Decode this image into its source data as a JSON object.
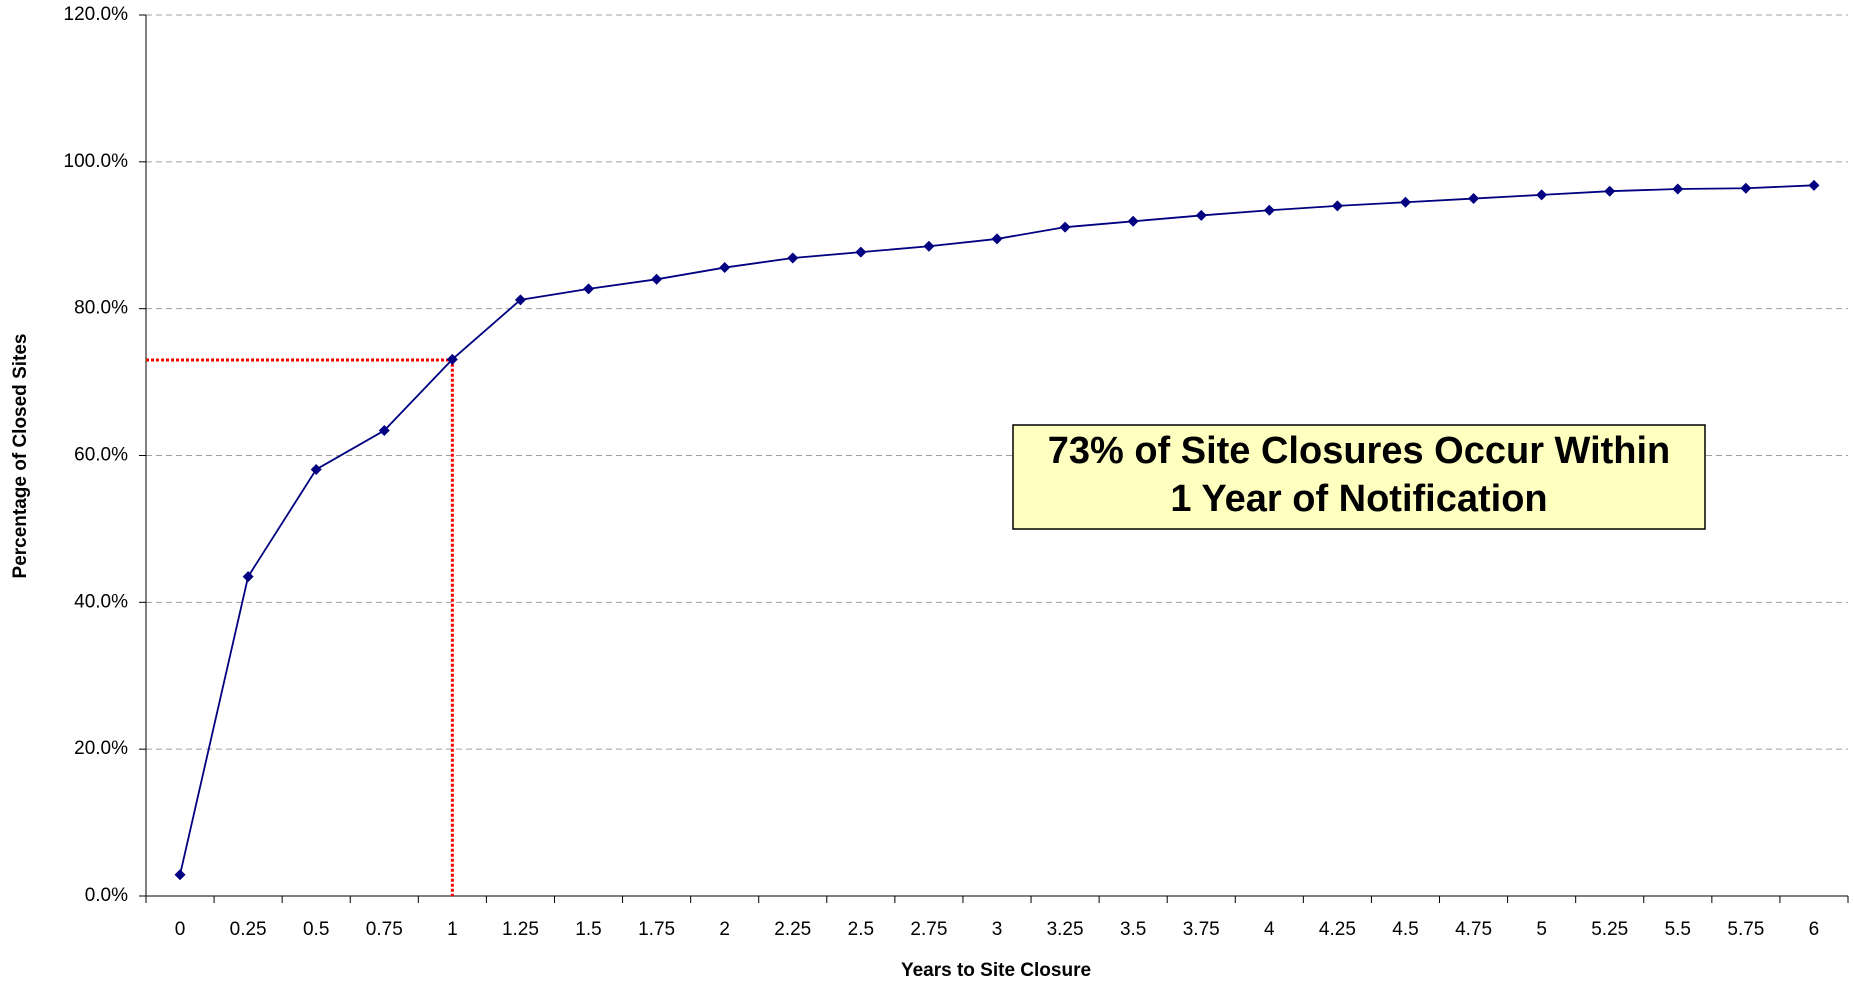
{
  "chart_data": {
    "type": "line",
    "x_label": "Years to Site Closure",
    "y_label": "Percentage of Closed Sites",
    "categories": [
      "0",
      "0.25",
      "0.5",
      "0.75",
      "1",
      "1.25",
      "1.5",
      "1.75",
      "2",
      "2.25",
      "2.5",
      "2.75",
      "3",
      "3.25",
      "3.5",
      "3.75",
      "4",
      "4.25",
      "4.5",
      "4.75",
      "5",
      "5.25",
      "5.5",
      "5.75",
      "6"
    ],
    "series": [
      {
        "name": "Percentage of Closed Sites",
        "color": "#000080",
        "values": [
          2.9,
          43.5,
          58.1,
          63.4,
          73.1,
          81.2,
          82.7,
          84.0,
          85.6,
          86.9,
          87.7,
          88.5,
          89.5,
          91.1,
          91.9,
          92.7,
          93.4,
          94.0,
          94.5,
          95.0,
          95.5,
          96.0,
          96.3,
          96.4,
          96.8
        ]
      }
    ],
    "ylim": [
      0,
      120
    ],
    "yticks": [
      {
        "value": 0,
        "label": "0.0%"
      },
      {
        "value": 20,
        "label": "20.0%"
      },
      {
        "value": 40,
        "label": "40.0%"
      },
      {
        "value": 60,
        "label": "60.0%"
      },
      {
        "value": 80,
        "label": "80.0%"
      },
      {
        "value": 100,
        "label": "100.0%"
      },
      {
        "value": 120,
        "label": "120.0%"
      }
    ],
    "grid": true,
    "grid_color": "#a0a0a0",
    "reference_line": {
      "x": "1",
      "y": 73,
      "color": "#ff0000"
    },
    "annotation": {
      "lines": [
        "73% of Site Closures Occur Within",
        "1 Year of Notification"
      ],
      "background": "#ffffc0"
    }
  }
}
